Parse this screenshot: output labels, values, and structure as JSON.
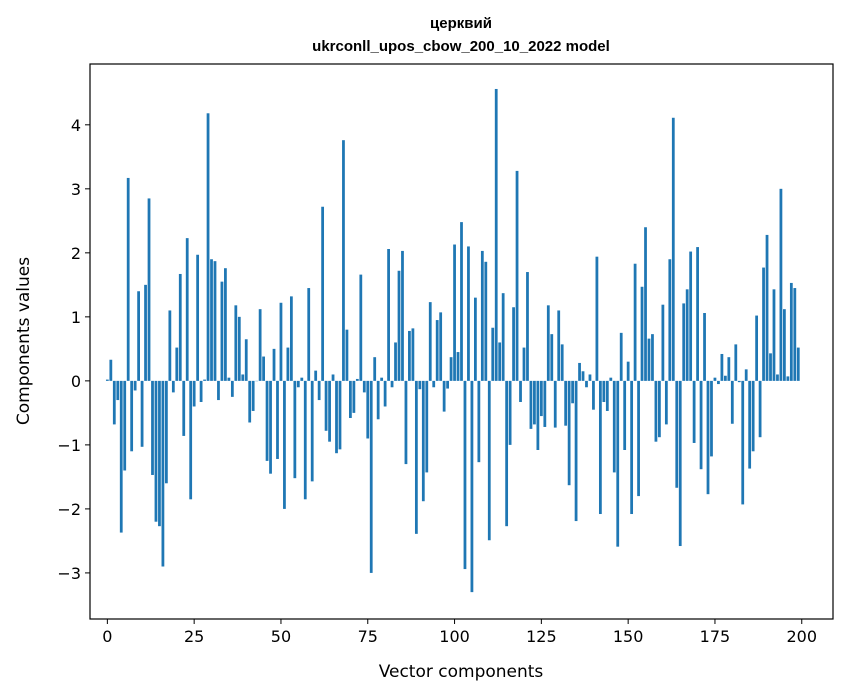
{
  "chart_data": {
    "type": "bar",
    "title": "церквий",
    "subtitle": "ukrconll_upos_cbow_200_10_2022 model",
    "xlabel": "Vector components",
    "ylabel": "Components values",
    "xlim": [
      -5,
      209
    ],
    "ylim": [
      -3.72,
      4.95
    ],
    "xticks": [
      0,
      25,
      50,
      75,
      100,
      125,
      150,
      175,
      200
    ],
    "yticks": [
      -3,
      -2,
      -1,
      0,
      1,
      2,
      3,
      4
    ],
    "ytick_labels": [
      "−3",
      "−2",
      "−1",
      "0",
      "1",
      "2",
      "3",
      "4"
    ],
    "bar_color": "#1f77b4",
    "grid": false,
    "x": [
      0,
      1,
      2,
      3,
      4,
      5,
      6,
      7,
      8,
      9,
      10,
      11,
      12,
      13,
      14,
      15,
      16,
      17,
      18,
      19,
      20,
      21,
      22,
      23,
      24,
      25,
      26,
      27,
      28,
      29,
      30,
      31,
      32,
      33,
      34,
      35,
      36,
      37,
      38,
      39,
      40,
      41,
      42,
      43,
      44,
      45,
      46,
      47,
      48,
      49,
      50,
      51,
      52,
      53,
      54,
      55,
      56,
      57,
      58,
      59,
      60,
      61,
      62,
      63,
      64,
      65,
      66,
      67,
      68,
      69,
      70,
      71,
      72,
      73,
      74,
      75,
      76,
      77,
      78,
      79,
      80,
      81,
      82,
      83,
      84,
      85,
      86,
      87,
      88,
      89,
      90,
      91,
      92,
      93,
      94,
      95,
      96,
      97,
      98,
      99,
      100,
      101,
      102,
      103,
      104,
      105,
      106,
      107,
      108,
      109,
      110,
      111,
      112,
      113,
      114,
      115,
      116,
      117,
      118,
      119,
      120,
      121,
      122,
      123,
      124,
      125,
      126,
      127,
      128,
      129,
      130,
      131,
      132,
      133,
      134,
      135,
      136,
      137,
      138,
      139,
      140,
      141,
      142,
      143,
      144,
      145,
      146,
      147,
      148,
      149,
      150,
      151,
      152,
      153,
      154,
      155,
      156,
      157,
      158,
      159,
      160,
      161,
      162,
      163,
      164,
      165,
      166,
      167,
      168,
      169,
      170,
      171,
      172,
      173,
      174,
      175,
      176,
      177,
      178,
      179,
      180,
      181,
      182,
      183,
      184,
      185,
      186,
      187,
      188,
      189,
      190,
      191,
      192,
      193,
      194,
      195,
      196,
      197,
      198,
      199
    ],
    "values": [
      0.02,
      0.33,
      -0.68,
      -0.3,
      -2.37,
      -1.4,
      3.17,
      -1.1,
      -0.15,
      1.4,
      -1.03,
      1.5,
      2.85,
      -1.47,
      -2.2,
      -2.27,
      -2.9,
      -1.6,
      1.1,
      -0.18,
      0.52,
      1.67,
      -0.86,
      2.23,
      -1.85,
      -0.4,
      1.97,
      -0.33,
      0.02,
      4.18,
      1.9,
      1.87,
      -0.3,
      1.55,
      1.76,
      0.05,
      -0.25,
      1.18,
      1.0,
      0.1,
      0.65,
      -0.65,
      -0.47,
      0.0,
      1.12,
      0.38,
      -1.25,
      -1.45,
      0.5,
      -1.22,
      1.22,
      -2.0,
      0.52,
      1.32,
      -1.52,
      -0.1,
      0.05,
      -1.85,
      1.45,
      -1.57,
      0.16,
      -0.3,
      2.72,
      -0.78,
      -0.95,
      0.1,
      -1.13,
      -1.07,
      3.76,
      0.8,
      -0.58,
      -0.5,
      0.03,
      1.66,
      -0.18,
      -0.9,
      -3.0,
      0.37,
      -0.6,
      0.05,
      -0.4,
      2.06,
      -0.1,
      0.6,
      1.72,
      2.03,
      -1.3,
      0.78,
      0.82,
      -2.39,
      -0.13,
      -1.88,
      -1.43,
      1.23,
      -0.1,
      0.95,
      1.07,
      -0.48,
      -0.12,
      0.37,
      2.13,
      0.45,
      2.48,
      -2.94,
      2.1,
      -3.3,
      1.3,
      -1.27,
      2.03,
      1.86,
      -2.49,
      0.83,
      4.56,
      0.6,
      1.37,
      -2.27,
      -1.0,
      1.15,
      3.28,
      -0.33,
      0.52,
      1.7,
      -0.75,
      -0.68,
      -1.08,
      -0.55,
      -0.72,
      1.18,
      0.73,
      -0.73,
      1.1,
      0.57,
      -0.7,
      -1.63,
      -0.35,
      -2.19,
      0.28,
      0.15,
      -0.1,
      0.1,
      -0.45,
      1.94,
      -2.08,
      -0.33,
      -0.47,
      0.05,
      -1.43,
      -2.59,
      0.75,
      -1.08,
      0.3,
      -2.08,
      1.83,
      -1.8,
      1.47,
      2.4,
      0.66,
      0.73,
      -0.95,
      -0.88,
      1.19,
      -0.68,
      1.9,
      4.11,
      -1.67,
      -2.58,
      1.21,
      1.43,
      2.02,
      -0.97,
      2.09,
      -1.38,
      1.06,
      -1.77,
      -1.18,
      0.05,
      -0.05,
      0.42,
      0.08,
      0.37,
      -0.67,
      0.57,
      -0.02,
      -1.93,
      0.18,
      -1.37,
      -1.1,
      1.02,
      -0.88,
      1.77,
      2.28,
      0.43,
      1.43,
      0.1,
      3.0,
      1.12,
      0.07,
      1.53,
      1.45,
      0.52
    ]
  }
}
